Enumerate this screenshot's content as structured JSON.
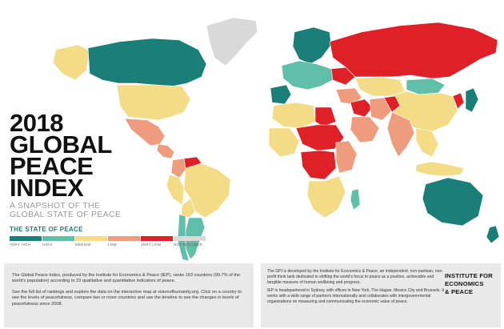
{
  "title_lines": [
    "2018",
    "GLOBAL",
    "PEACE",
    "INDEX"
  ],
  "subtitle_lines": [
    "A SNAPSHOT OF THE",
    "GLOBAL STATE OF PEACE"
  ],
  "legend": {
    "title": "THE STATE OF PEACE",
    "items": [
      {
        "label": "VERY HIGH",
        "color": "#1a7f78"
      },
      {
        "label": "HIGH",
        "color": "#5fbfa9"
      },
      {
        "label": "MEDIUM",
        "color": "#f3dc85"
      },
      {
        "label": "LOW",
        "color": "#ef9c7e"
      },
      {
        "label": "VERY LOW",
        "color": "#e02027"
      },
      {
        "label": "NOT INCLUDED",
        "color": "#d9d9d9"
      }
    ]
  },
  "panel_left": {
    "para1": "The Global Peace Index, produced by the Institute for Economics & Peace (IEP), ranks 163 countries (99.7% of the world's population) according to 23 qualitative and quantitative indicators of peace.",
    "para2": "See the full list of rankings and explore the data on the interactive map at visionofhumanity.org. Click on a country to see the levels of peacefulness, compare two or more countries and use the timeline to see the changes in levels of peacefulness since 2008."
  },
  "panel_right": {
    "para1": "The GPI is developed by the Institute for Economics & Peace, an independent, non-partisan, non-profit think tank dedicated to shifting the world's focus to peace as a positive, achievable and tangible measure of human wellbeing and progress.",
    "para2": "IEP is headquartered in Sydney, with offices in New York, The Hague, Mexico City and Brussels. It works with a wide range of partners internationally and collaborates with intergovernmental organisations on measuring and communicating the economic value of peace."
  },
  "logo_lines": [
    "INSTITUTE FOR",
    "ECONOMICS",
    "& PEACE"
  ],
  "map_regions": [
    {
      "name": "greenland",
      "color": "#d9d9d9"
    },
    {
      "name": "canada",
      "color": "#1a7f78"
    },
    {
      "name": "alaska",
      "color": "#f3dc85"
    },
    {
      "name": "usa",
      "color": "#f3dc85"
    },
    {
      "name": "mexico",
      "color": "#ef9c7e"
    },
    {
      "name": "central-america",
      "color": "#ef9c7e"
    },
    {
      "name": "venezuela",
      "color": "#e02027"
    },
    {
      "name": "colombia",
      "color": "#ef9c7e"
    },
    {
      "name": "brazil",
      "color": "#f3dc85"
    },
    {
      "name": "peru",
      "color": "#f3dc85"
    },
    {
      "name": "bolivia",
      "color": "#f3dc85"
    },
    {
      "name": "chile",
      "color": "#5fbfa9"
    },
    {
      "name": "argentina",
      "color": "#5fbfa9"
    },
    {
      "name": "europe-north",
      "color": "#1a7f78"
    },
    {
      "name": "europe-west",
      "color": "#5fbfa9"
    },
    {
      "name": "iberia",
      "color": "#1a7f78"
    },
    {
      "name": "ukraine",
      "color": "#e02027"
    },
    {
      "name": "russia",
      "color": "#e02027"
    },
    {
      "name": "kazakhstan",
      "color": "#f3dc85"
    },
    {
      "name": "china",
      "color": "#f3dc85"
    },
    {
      "name": "mongolia",
      "color": "#5fbfa9"
    },
    {
      "name": "middle-east",
      "color": "#ef9c7e"
    },
    {
      "name": "syria-iraq",
      "color": "#e02027"
    },
    {
      "name": "saudi-arabia",
      "color": "#ef9c7e"
    },
    {
      "name": "iran",
      "color": "#ef9c7e"
    },
    {
      "name": "afghanistan",
      "color": "#e02027"
    },
    {
      "name": "india",
      "color": "#ef9c7e"
    },
    {
      "name": "southeast-asia",
      "color": "#f3dc85"
    },
    {
      "name": "indonesia",
      "color": "#f3dc85"
    },
    {
      "name": "japan",
      "color": "#1a7f78"
    },
    {
      "name": "korea",
      "color": "#e02027"
    },
    {
      "name": "north-africa",
      "color": "#f3dc85"
    },
    {
      "name": "libya",
      "color": "#e02027"
    },
    {
      "name": "sahel",
      "color": "#e02027"
    },
    {
      "name": "west-africa",
      "color": "#f3dc85"
    },
    {
      "name": "central-africa",
      "color": "#e02027"
    },
    {
      "name": "east-africa",
      "color": "#ef9c7e"
    },
    {
      "name": "southern-africa",
      "color": "#f3dc85"
    },
    {
      "name": "madagascar",
      "color": "#5fbfa9"
    },
    {
      "name": "australia",
      "color": "#1a7f78"
    },
    {
      "name": "new-zealand",
      "color": "#1a7f78"
    }
  ]
}
